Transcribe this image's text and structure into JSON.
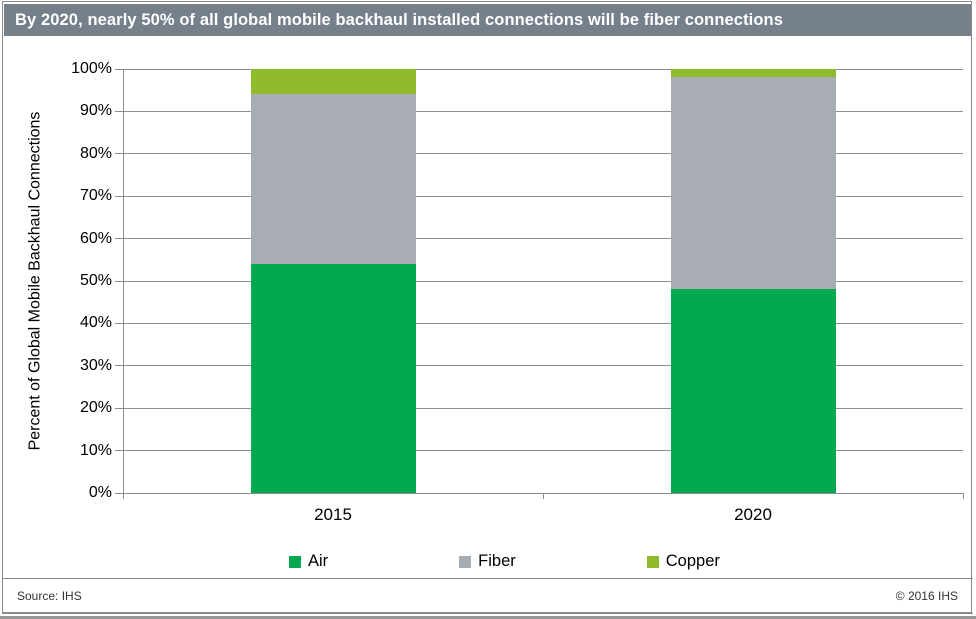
{
  "header": {
    "title": "By 2020, nearly 50% of all global mobile backhaul installed connections will be fiber connections",
    "bg_color": "#75808B"
  },
  "chart_data": {
    "type": "bar",
    "stacked": true,
    "title": "By 2020, nearly 50% of all global mobile backhaul installed connections will be fiber connections",
    "categories": [
      "2015",
      "2020"
    ],
    "series": [
      {
        "name": "Air",
        "color": "#00A84E",
        "values": [
          54,
          48
        ]
      },
      {
        "name": "Fiber",
        "color": "#A7ADB2",
        "values": [
          40,
          50
        ]
      },
      {
        "name": "Copper",
        "color": "#8FBB2C",
        "values": [
          6,
          2
        ]
      }
    ],
    "xlabel": "",
    "ylabel": "Percent of Global Mobile Backhaul Connections",
    "ylim": [
      0,
      100
    ],
    "ytick_step": 10,
    "ytick_labels": [
      "0%",
      "10%",
      "20%",
      "30%",
      "40%",
      "50%",
      "60%",
      "70%",
      "80%",
      "90%",
      "100%"
    ],
    "grid": true,
    "legend_position": "bottom"
  },
  "footer": {
    "source": "Source: IHS",
    "copyright": "© 2016 IHS"
  }
}
